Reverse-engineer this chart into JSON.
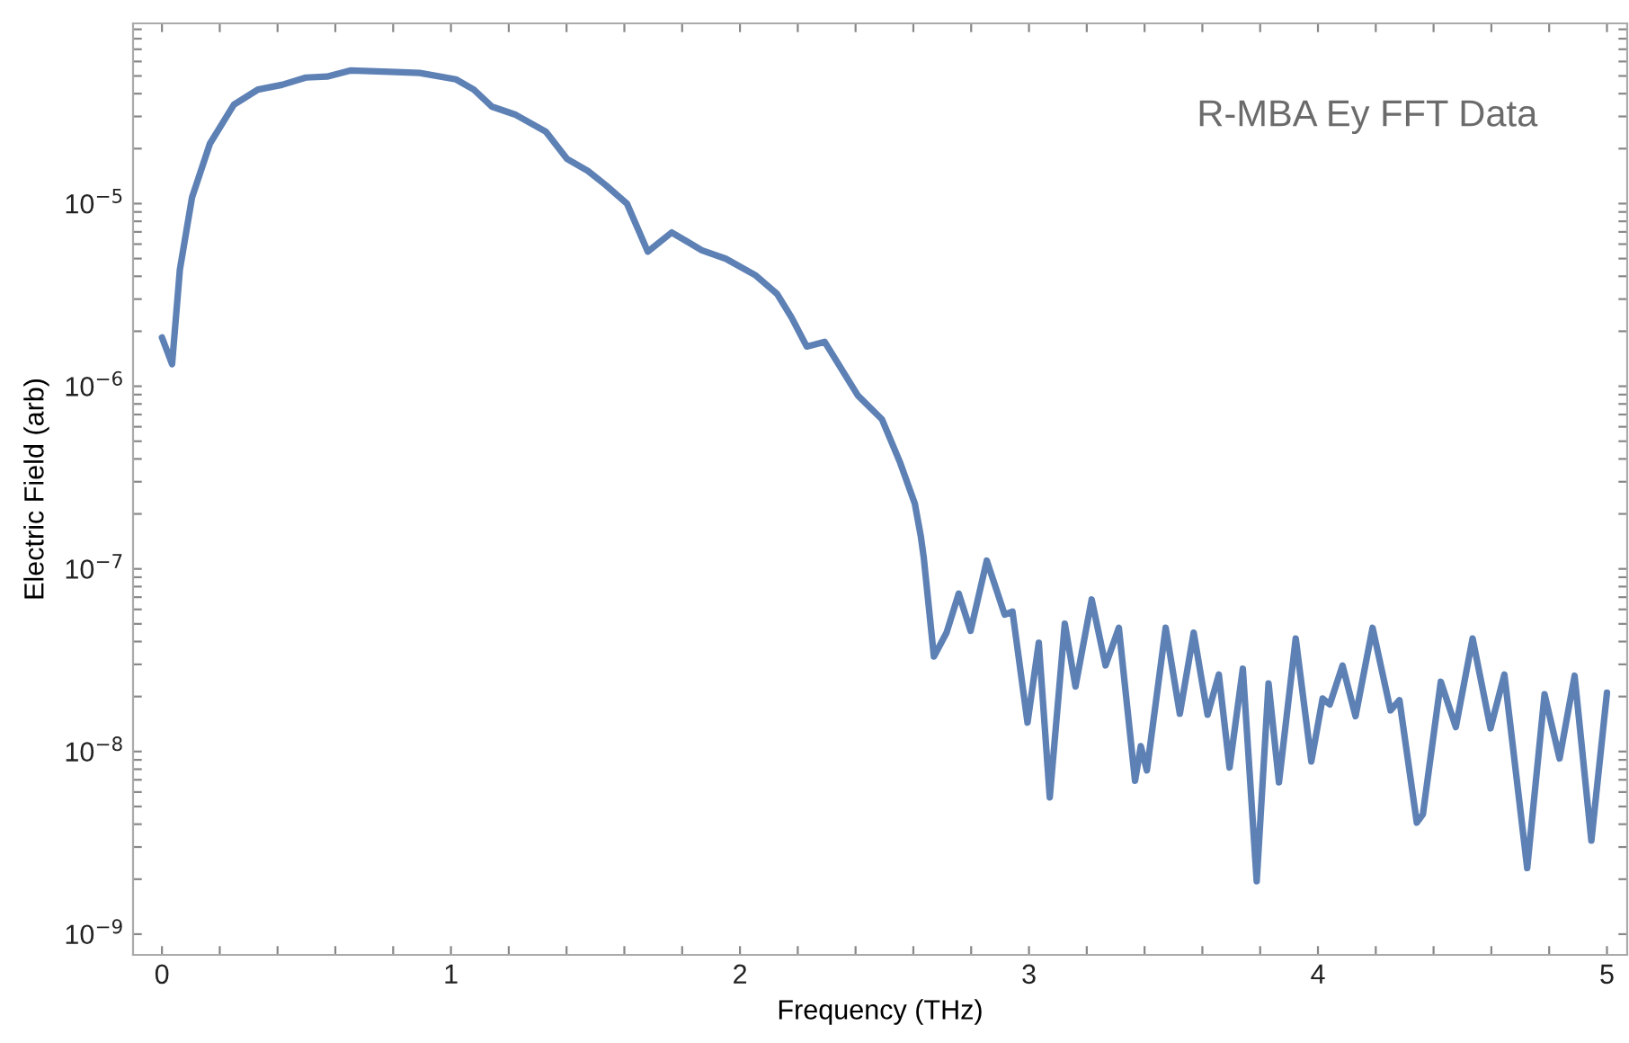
{
  "chart_data": {
    "type": "line",
    "title": "R-MBA Ey FFT Data",
    "xlabel": "Frequency (THz)",
    "ylabel": "Electric Field (arb)",
    "log": "y",
    "grid": false,
    "marker": "none",
    "line_style": "solid",
    "xlim": [
      -0.1,
      5.07
    ],
    "ylim": [
      7.7e-10,
      9.7e-05
    ],
    "xticks": [
      0,
      {
        "value": 0.2,
        "label": null
      },
      {
        "value": 0.4,
        "label": null
      },
      {
        "value": 0.6,
        "label": null
      },
      {
        "value": 0.8,
        "label": null
      },
      1,
      {
        "value": 1.2,
        "label": null
      },
      {
        "value": 1.4,
        "label": null
      },
      {
        "value": 1.6,
        "label": null
      },
      {
        "value": 1.8,
        "label": null
      },
      2,
      {
        "value": 2.2,
        "label": null
      },
      {
        "value": 2.4,
        "label": null
      },
      {
        "value": 2.6,
        "label": null
      },
      {
        "value": 2.8,
        "label": null
      },
      3,
      {
        "value": 3.2,
        "label": null
      },
      {
        "value": 3.4,
        "label": null
      },
      {
        "value": 3.6,
        "label": null
      },
      {
        "value": 3.8,
        "label": null
      },
      4,
      {
        "value": 4.2,
        "label": null
      },
      {
        "value": 4.4,
        "label": null
      },
      {
        "value": 4.6,
        "label": null
      },
      {
        "value": 4.8,
        "label": null
      },
      5
    ],
    "yticks": [
      {
        "value": 1e-09,
        "label": "10$^{−9}$"
      },
      {
        "value": 2e-09,
        "label": null
      },
      {
        "value": 3e-09,
        "label": null
      },
      {
        "value": 4e-09,
        "label": null
      },
      {
        "value": 5e-09,
        "label": null
      },
      {
        "value": 6e-09,
        "label": null
      },
      {
        "value": 7e-09,
        "label": null
      },
      {
        "value": 8e-09,
        "label": null
      },
      {
        "value": 9e-09,
        "label": null
      },
      {
        "value": 1e-08,
        "label": "10$^{−8}$"
      },
      {
        "value": 2e-08,
        "label": null
      },
      {
        "value": 3e-08,
        "label": null
      },
      {
        "value": 4e-08,
        "label": null
      },
      {
        "value": 5e-08,
        "label": null
      },
      {
        "value": 6e-08,
        "label": null
      },
      {
        "value": 7e-08,
        "label": null
      },
      {
        "value": 8e-08,
        "label": null
      },
      {
        "value": 9e-08,
        "label": null
      },
      {
        "value": 1e-07,
        "label": "10$^{−7}$"
      },
      {
        "value": 2e-07,
        "label": null
      },
      {
        "value": 3e-07,
        "label": null
      },
      {
        "value": 4e-07,
        "label": null
      },
      {
        "value": 5e-07,
        "label": null
      },
      {
        "value": 6e-07,
        "label": null
      },
      {
        "value": 7e-07,
        "label": null
      },
      {
        "value": 8e-07,
        "label": null
      },
      {
        "value": 9e-07,
        "label": null
      },
      {
        "value": 1e-06,
        "label": "10$^{−6}$"
      },
      {
        "value": 2e-06,
        "label": null
      },
      {
        "value": 3e-06,
        "label": null
      },
      {
        "value": 4e-06,
        "label": null
      },
      {
        "value": 5e-06,
        "label": null
      },
      {
        "value": 6e-06,
        "label": null
      },
      {
        "value": 7e-06,
        "label": null
      },
      {
        "value": 8e-06,
        "label": null
      },
      {
        "value": 9e-06,
        "label": null
      },
      {
        "value": 1e-05,
        "label": "10$^{−5}$"
      },
      {
        "value": 2e-05,
        "label": null
      },
      {
        "value": 3e-05,
        "label": null
      },
      {
        "value": 4e-05,
        "label": null
      },
      {
        "value": 5e-05,
        "label": null
      },
      {
        "value": 6e-05,
        "label": null
      },
      {
        "value": 7e-05,
        "label": null
      },
      {
        "value": 8e-05,
        "label": null
      },
      {
        "value": 9e-05,
        "label": null
      }
    ],
    "series": [
      {
        "color": "#5e81b5",
        "x": [
          0.0,
          0.035,
          0.062,
          0.104,
          0.166,
          0.249,
          0.332,
          0.415,
          0.498,
          0.571,
          0.654,
          0.789,
          0.892,
          1.017,
          1.079,
          1.141,
          1.225,
          1.328,
          1.401,
          1.474,
          1.536,
          1.609,
          1.681,
          1.764,
          1.868,
          1.951,
          2.055,
          2.128,
          2.179,
          2.231,
          2.293,
          2.408,
          2.491,
          2.553,
          2.605,
          2.626,
          2.636,
          2.671,
          2.715,
          2.757,
          2.798,
          2.854,
          2.916,
          2.943,
          2.995,
          3.034,
          3.072,
          3.124,
          3.161,
          3.217,
          3.265,
          3.311,
          3.367,
          3.387,
          3.408,
          3.473,
          3.522,
          3.57,
          3.618,
          3.657,
          3.694,
          3.74,
          3.788,
          3.829,
          3.865,
          3.923,
          3.977,
          4.016,
          4.041,
          4.085,
          4.13,
          4.189,
          4.251,
          4.282,
          4.342,
          4.363,
          4.425,
          4.477,
          4.535,
          4.597,
          4.645,
          4.724,
          4.784,
          4.836,
          4.888,
          4.946,
          5.0
        ],
        "values": [
          1.85e-06,
          1.32e-06,
          4.35e-06,
          1.08e-05,
          2.13e-05,
          3.48e-05,
          4.21e-05,
          4.47e-05,
          4.9e-05,
          4.96e-05,
          5.36e-05,
          5.27e-05,
          5.19e-05,
          4.79e-05,
          4.21e-05,
          3.4e-05,
          3.06e-05,
          2.48e-05,
          1.76e-05,
          1.51e-05,
          1.26e-05,
          1e-05,
          5.46e-06,
          6.95e-06,
          5.55e-06,
          4.99e-06,
          4.04e-06,
          3.21e-06,
          2.37e-06,
          1.65e-06,
          1.75e-06,
          8.9e-07,
          6.6e-07,
          3.86e-07,
          2.28e-07,
          1.5e-07,
          1.15e-07,
          3.31e-08,
          4.48e-08,
          7.33e-08,
          4.58e-08,
          1.11e-07,
          5.62e-08,
          5.84e-08,
          1.44e-08,
          3.94e-08,
          5.61e-09,
          5.01e-08,
          2.27e-08,
          6.8e-08,
          2.96e-08,
          4.76e-08,
          6.92e-09,
          1.07e-08,
          7.88e-09,
          4.76e-08,
          1.61e-08,
          4.48e-08,
          1.59e-08,
          2.64e-08,
          8.17e-09,
          2.84e-08,
          1.95e-09,
          2.36e-08,
          6.78e-09,
          4.16e-08,
          8.83e-09,
          1.95e-08,
          1.81e-08,
          2.96e-08,
          1.56e-08,
          4.76e-08,
          1.68e-08,
          1.91e-08,
          4.08e-09,
          4.53e-09,
          2.41e-08,
          1.36e-08,
          4.16e-08,
          1.34e-08,
          2.64e-08,
          2.3e-09,
          2.06e-08,
          9.16e-09,
          2.6e-08,
          3.25e-09,
          2.1e-08
        ]
      }
    ]
  }
}
